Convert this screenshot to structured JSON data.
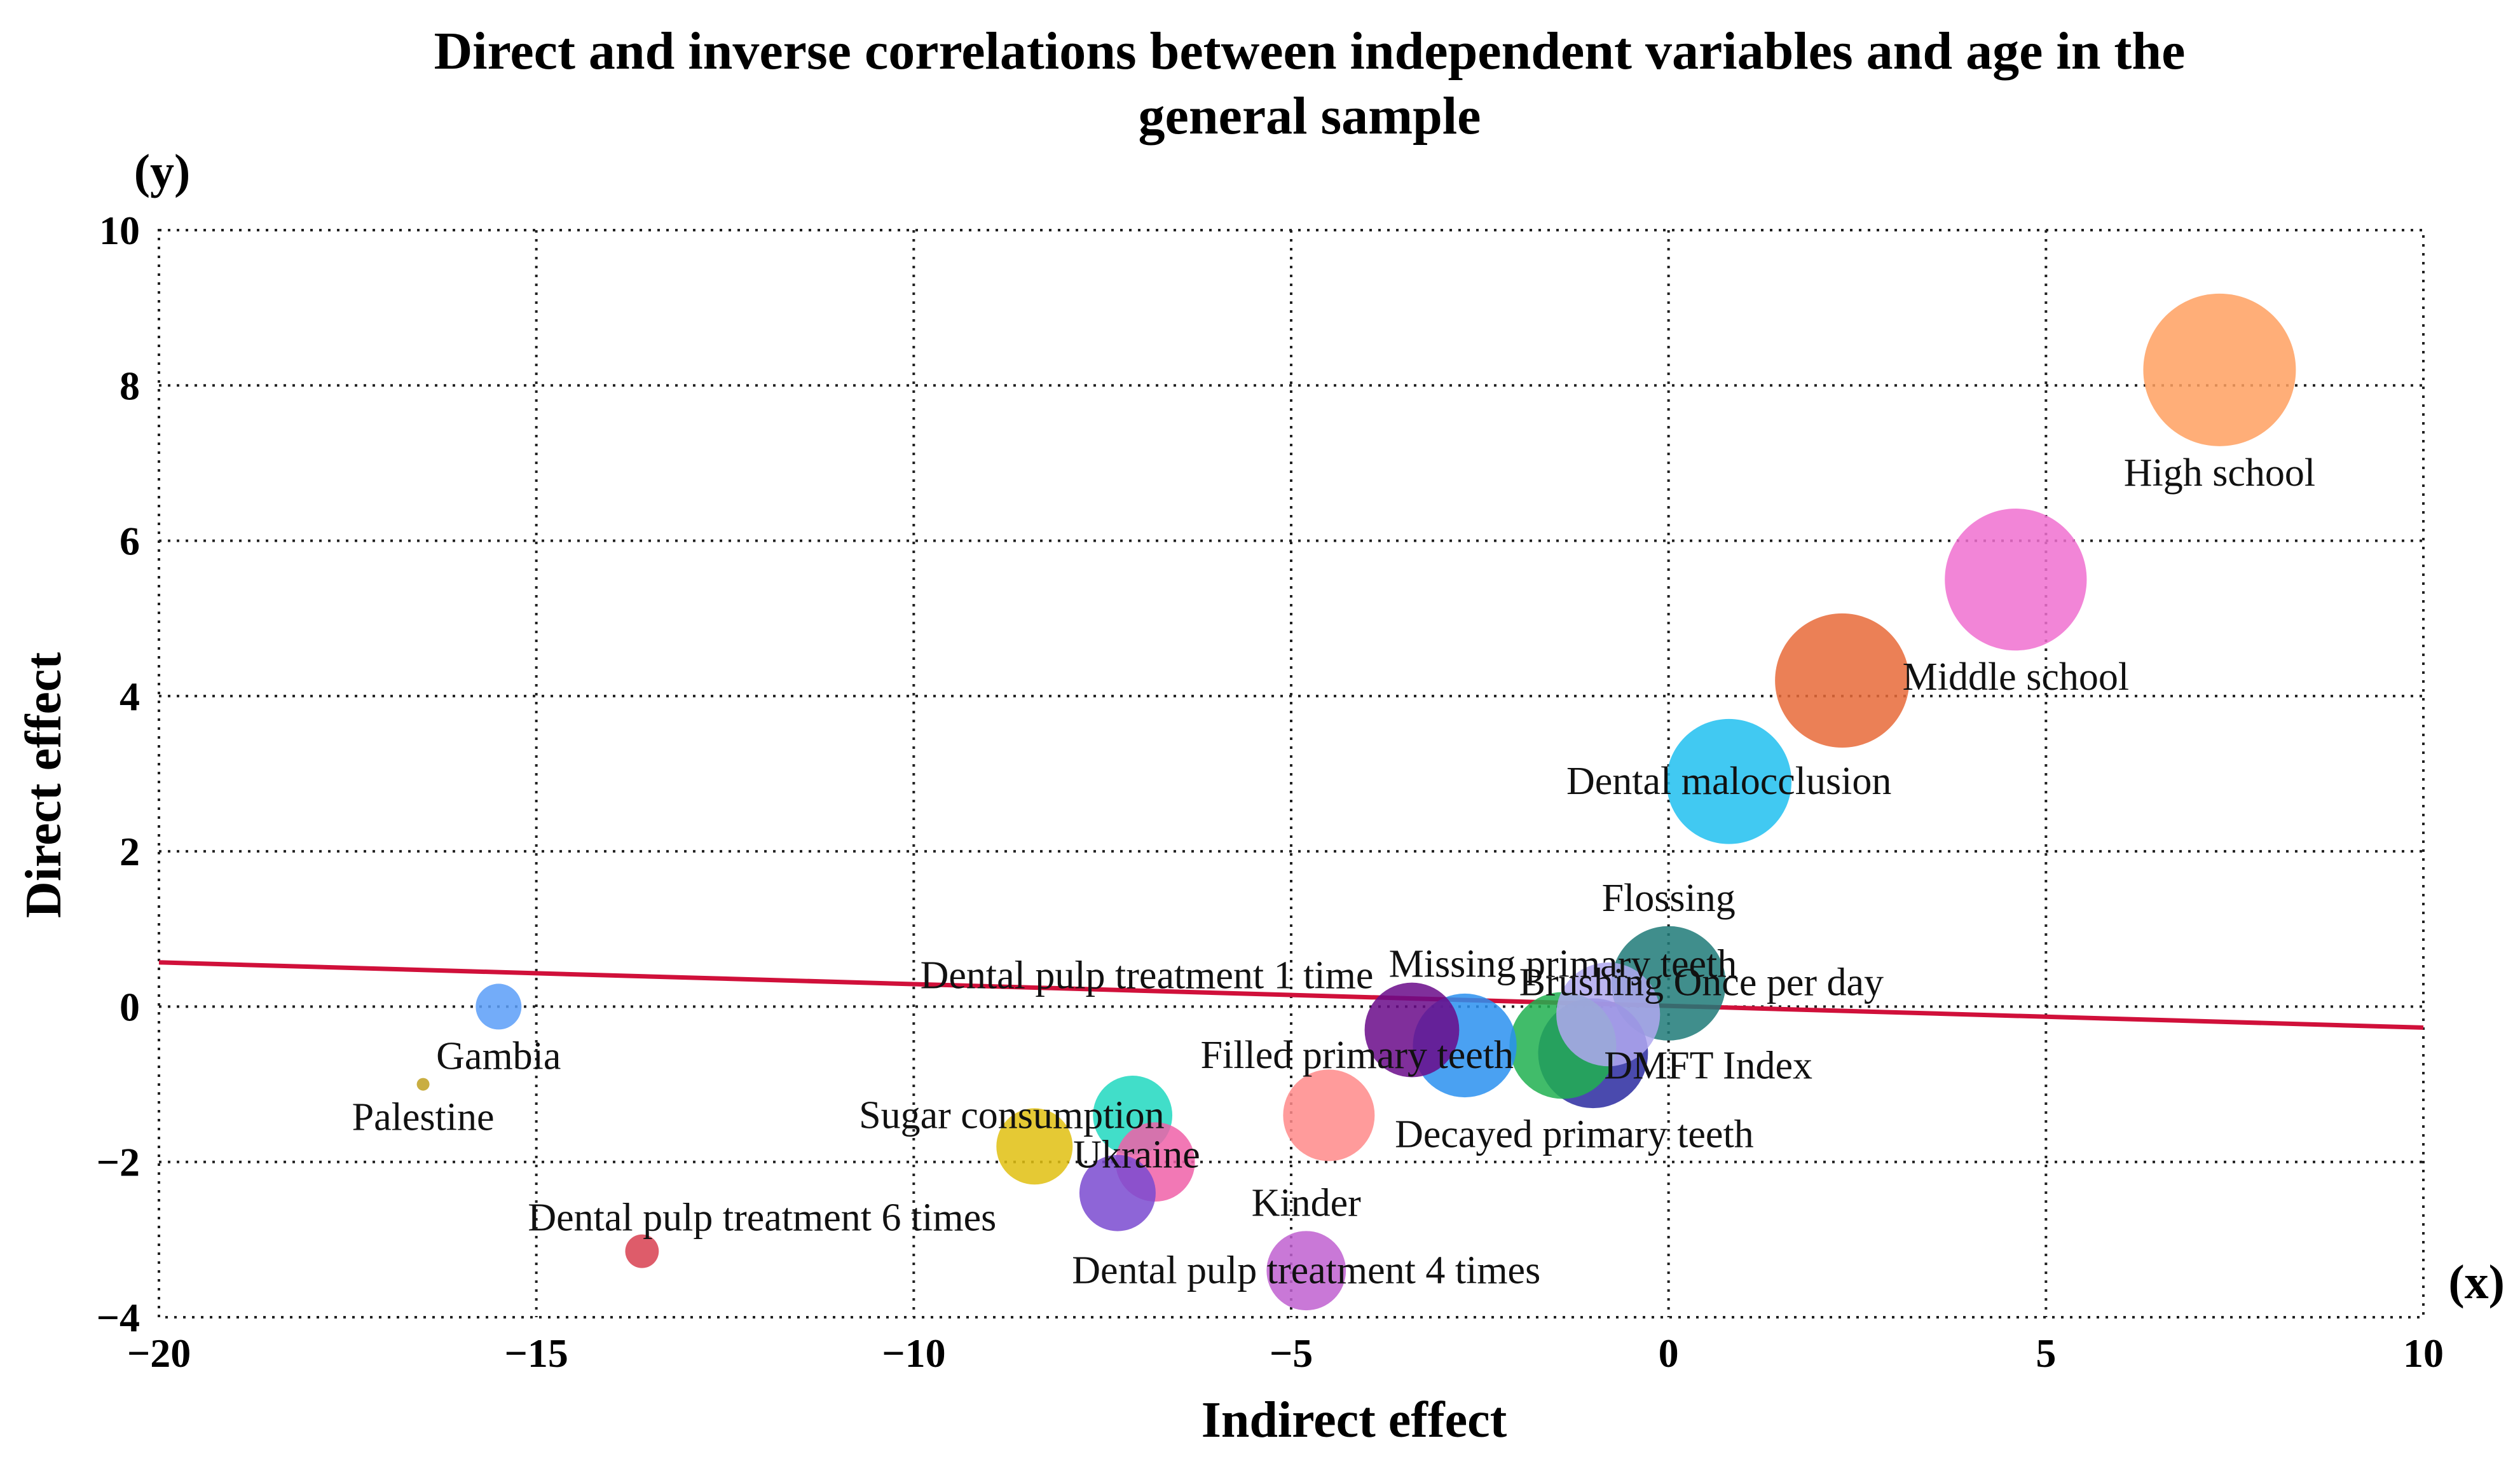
{
  "chart_data": {
    "type": "scatter",
    "title": "Direct and inverse correlations between independent variables and age in the general sample",
    "title_lines": [
      "Direct and inverse correlations between independent variables and age in the",
      "general sample"
    ],
    "xlabel": "Indirect effect",
    "ylabel": "Direct effect",
    "x_axis_tag": "(x)",
    "y_axis_tag": "(y)",
    "xlim": [
      -20,
      10
    ],
    "ylim": [
      -4,
      10
    ],
    "xticks": [
      -20,
      -15,
      -10,
      -5,
      0,
      5,
      10
    ],
    "yticks": [
      -4,
      -2,
      0,
      2,
      4,
      6,
      8,
      10
    ],
    "xtick_labels": [
      "−20",
      "−15",
      "−10",
      "−5",
      "0",
      "5",
      "10"
    ],
    "ytick_labels": [
      "−4",
      "−2",
      "0",
      "2",
      "4",
      "6",
      "8",
      "10"
    ],
    "grid": true,
    "trendline": {
      "x": [
        -20,
        10
      ],
      "y": [
        0.57,
        -0.27
      ],
      "color": "#d0103a"
    },
    "points": [
      {
        "label": "High school",
        "x": 7.3,
        "y": 8.2,
        "size": 1.0,
        "color": "#ffa060",
        "label_pos": "below"
      },
      {
        "label": "Middle school",
        "x": 4.6,
        "y": 5.5,
        "size": 0.93,
        "color": "#f070d0",
        "label_pos": "below"
      },
      {
        "label": "Dental malocclusion",
        "x": 0.8,
        "y": 2.9,
        "size": 0.82,
        "color": "#20c0f0",
        "label_pos": "center"
      },
      {
        "label": "",
        "x": 2.3,
        "y": 4.2,
        "size": 0.88,
        "color": "#e86a38",
        "label_pos": "none"
      },
      {
        "label": "Flossing",
        "x": 0.0,
        "y": 0.3,
        "size": 0.75,
        "color": "#1f7a78",
        "label_pos": "above"
      },
      {
        "label": "Brushing Once per day",
        "x": -0.8,
        "y": -0.1,
        "size": 0.68,
        "color": "#b0a8f0",
        "label_pos": "right-above"
      },
      {
        "label": "DMFT Index",
        "x": -1.0,
        "y": -0.6,
        "size": 0.72,
        "color": "#2a2aa0",
        "label_pos": "right"
      },
      {
        "label": "Missing primary teeth",
        "x": -1.4,
        "y": -0.5,
        "size": 0.7,
        "color": "#20b050",
        "label_pos": "above"
      },
      {
        "label": "Decayed primary teeth",
        "x": -2.7,
        "y": -0.5,
        "size": 0.68,
        "color": "#2a90f0",
        "label_pos": "below-right"
      },
      {
        "label": "Filled primary teeth",
        "x": -3.4,
        "y": -0.3,
        "size": 0.62,
        "color": "#6a0a8a",
        "label_pos": "left-below"
      },
      {
        "label": "Dental pulp treatment 1 time",
        "x": -4.5,
        "y": -1.4,
        "size": 0.6,
        "color": "#ff8a8a",
        "label_pos": "above-left"
      },
      {
        "label": "Kinder",
        "x": -4.8,
        "y": -3.4,
        "size": 0.52,
        "color": "#c060d0",
        "label_pos": "above"
      },
      {
        "label": "Dental pulp treatment 4 times",
        "x": -4.8,
        "y": -3.4,
        "size": 0.0,
        "color": "#c060d0",
        "label_pos": "center"
      },
      {
        "label": "Sugar consumption",
        "x": -7.1,
        "y": -1.4,
        "size": 0.52,
        "color": "#20d8c0",
        "label_pos": "left"
      },
      {
        "label": "",
        "x": -6.8,
        "y": -2.0,
        "size": 0.52,
        "color": "#f060a8",
        "label_pos": "none"
      },
      {
        "label": "Ukraine",
        "x": -7.3,
        "y": -2.4,
        "size": 0.5,
        "color": "#7a4ad0",
        "label_pos": "above-right"
      },
      {
        "label": "Dental pulp treatment 6 times",
        "x": -8.4,
        "y": -1.8,
        "size": 0.5,
        "color": "#e0c010",
        "label_pos": "below-left"
      },
      {
        "label": "Gambia",
        "x": -15.5,
        "y": 0.0,
        "size": 0.3,
        "color": "#5a9ef8",
        "label_pos": "below"
      },
      {
        "label": "Palestine",
        "x": -16.5,
        "y": -1.0,
        "size": 0.06,
        "color": "#c0a020",
        "label_pos": "below"
      },
      {
        "label": "",
        "x": -13.6,
        "y": -3.15,
        "size": 0.22,
        "color": "#d84050",
        "label_pos": "none"
      }
    ]
  }
}
